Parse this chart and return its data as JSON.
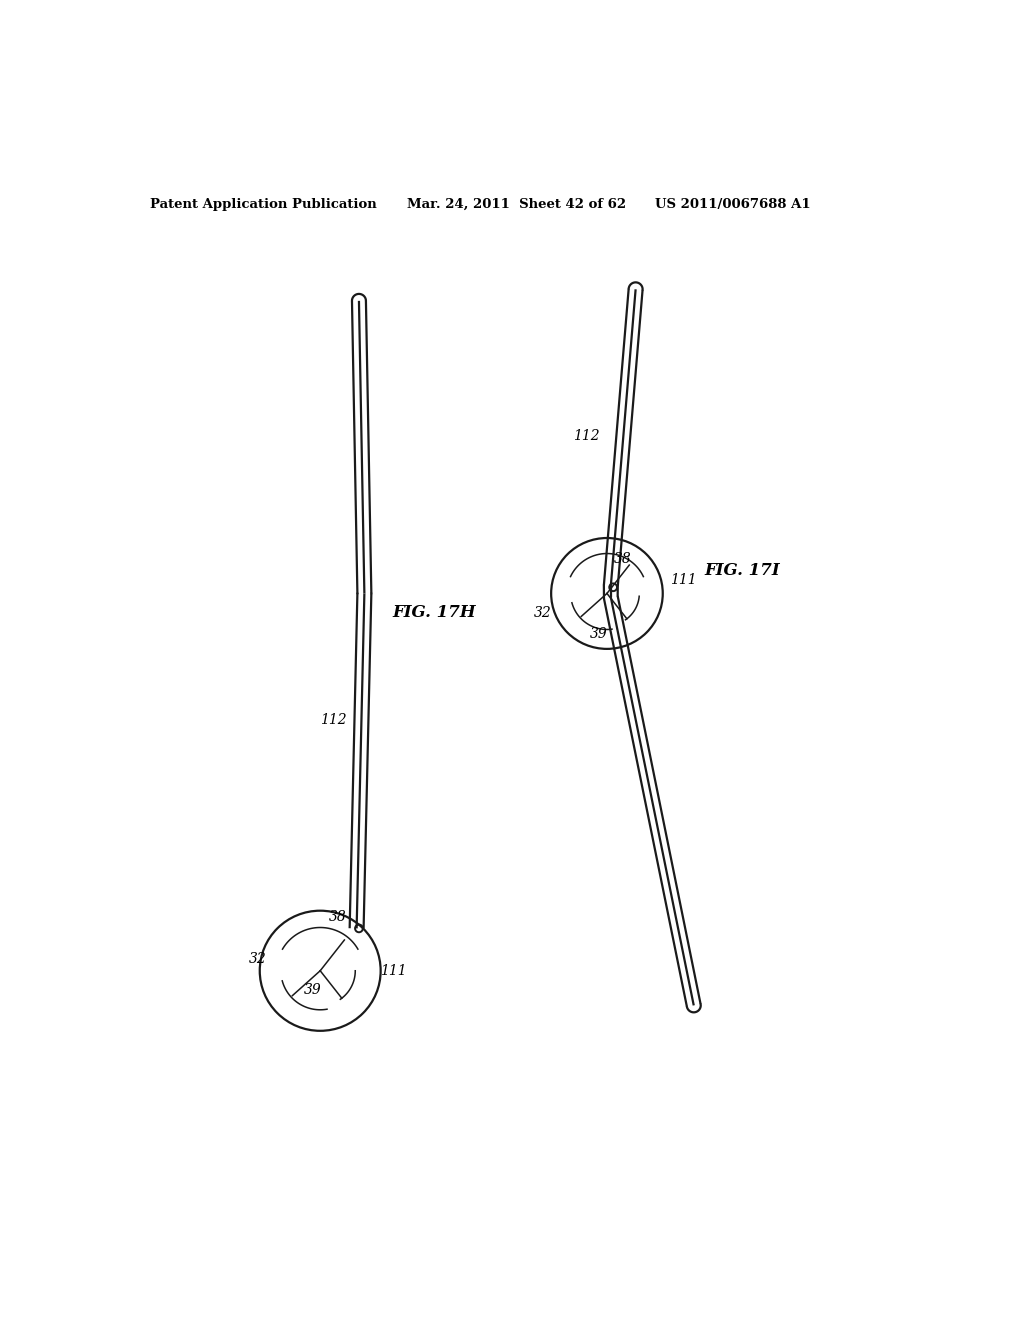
{
  "bg_color": "#ffffff",
  "line_color": "#1a1a1a",
  "header_text": "Patent Application Publication",
  "header_date": "Mar. 24, 2011  Sheet 42 of 62",
  "header_patent": "US 2011/0067688 A1",
  "fig_h_label": "FIG. 17H",
  "fig_i_label": "FIG. 17I",
  "label_112_h": "112",
  "label_38_h": "38",
  "label_39_h": "39",
  "label_32_h": "32",
  "label_111_h": "111",
  "label_112_i": "112",
  "label_38_i": "38",
  "label_39_i": "39",
  "label_32_i": "32",
  "label_111_i": "111",
  "sep": 9,
  "lw": 1.6,
  "circ_lw": 1.6,
  "inner_lw": 1.1
}
